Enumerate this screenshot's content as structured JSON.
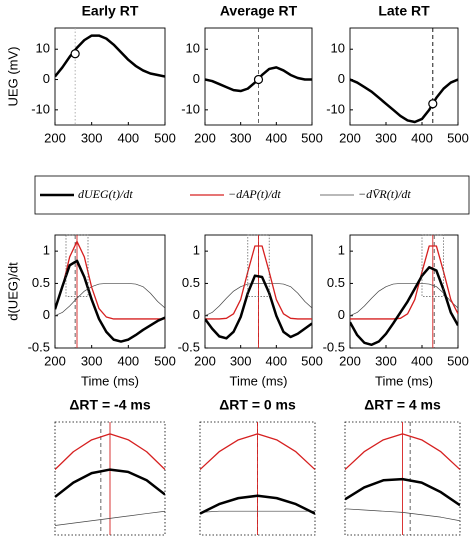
{
  "chart_data": [
    {
      "type": "line",
      "title": "Early RT",
      "ylabel": "UEG (mV)",
      "x": [
        200,
        220,
        240,
        260,
        280,
        300,
        320,
        340,
        360,
        380,
        400,
        420,
        440,
        460,
        480,
        500
      ],
      "series": [
        {
          "color": "#000000",
          "width": 2.5,
          "values": [
            1,
            4,
            7.5,
            10.5,
            13,
            14.5,
            14.5,
            13.5,
            11.5,
            9,
            6.5,
            4.5,
            3,
            2,
            1.5,
            1
          ]
        }
      ],
      "xlim": [
        200,
        500
      ],
      "xticks": [
        200,
        300,
        400,
        500
      ],
      "ylim": [
        -15,
        17
      ],
      "yticks": [
        -10,
        0,
        10
      ],
      "vlines": [
        {
          "x": 255,
          "color": "#aaaaaa",
          "style": "dotted"
        }
      ],
      "marker": {
        "x": 255,
        "y": 8.5
      }
    },
    {
      "type": "line",
      "title": "Average RT",
      "x": [
        200,
        220,
        240,
        260,
        280,
        300,
        320,
        340,
        360,
        380,
        400,
        420,
        440,
        460,
        480,
        500
      ],
      "series": [
        {
          "color": "#000000",
          "width": 2.5,
          "values": [
            0,
            -0.5,
            -1.5,
            -2.5,
            -3.5,
            -3.8,
            -3,
            -1,
            1.5,
            3.5,
            4,
            3,
            1.5,
            0.5,
            0,
            0
          ]
        }
      ],
      "xlim": [
        200,
        500
      ],
      "xticks": [
        200,
        300,
        400,
        500
      ],
      "ylim": [
        -15,
        17
      ],
      "yticks": [
        -10,
        0,
        10
      ],
      "vlines": [
        {
          "x": 350,
          "color": "#555555",
          "style": "dashed"
        }
      ],
      "marker": {
        "x": 350,
        "y": 0
      }
    },
    {
      "type": "line",
      "title": "Late RT",
      "x": [
        200,
        220,
        240,
        260,
        280,
        300,
        320,
        340,
        360,
        380,
        400,
        420,
        440,
        460,
        480,
        500
      ],
      "series": [
        {
          "color": "#000000",
          "width": 2.5,
          "values": [
            0,
            -1,
            -2.5,
            -4,
            -6,
            -8,
            -10,
            -12,
            -13.5,
            -14,
            -13,
            -10,
            -6,
            -3,
            -1,
            0
          ]
        }
      ],
      "xlim": [
        200,
        500
      ],
      "xticks": [
        200,
        300,
        400,
        500
      ],
      "ylim": [
        -15,
        17
      ],
      "yticks": [
        -10,
        0,
        10
      ],
      "vlines": [
        {
          "x": 430,
          "color": "#000000",
          "style": "dashed"
        }
      ],
      "marker": {
        "x": 430,
        "y": -8
      }
    },
    {
      "type": "line",
      "ylabel": "d(UEG)/dt",
      "xlabel": "Time (ms)",
      "x": [
        200,
        220,
        240,
        260,
        280,
        300,
        320,
        340,
        360,
        380,
        400,
        420,
        440,
        460,
        480,
        500
      ],
      "series": [
        {
          "name": "dUEG(t)/dt",
          "color": "#000000",
          "width": 2.5,
          "values": [
            0.1,
            0.45,
            0.78,
            0.85,
            0.6,
            0.25,
            -0.05,
            -0.25,
            -0.37,
            -0.4,
            -0.37,
            -0.3,
            -0.22,
            -0.15,
            -0.08,
            -0.03
          ]
        },
        {
          "name": "−dAP(t)/dt",
          "color": "#d62020",
          "width": 1.3,
          "values": [
            0.11,
            0.44,
            0.91,
            1.15,
            0.91,
            0.44,
            0.11,
            -0.02,
            -0.05,
            -0.05,
            -0.05,
            -0.05,
            -0.05,
            -0.05,
            -0.05,
            -0.05
          ]
        },
        {
          "name": "−dV̄R(t)/dt",
          "color": "#444444",
          "width": 0.7,
          "values": [
            0,
            0.05,
            0.15,
            0.27,
            0.38,
            0.45,
            0.49,
            0.5,
            0.5,
            0.5,
            0.5,
            0.49,
            0.45,
            0.35,
            0.22,
            0.12
          ]
        }
      ],
      "xlim": [
        200,
        500
      ],
      "xticks": [
        200,
        300,
        400,
        500
      ],
      "ylim": [
        -0.5,
        1.25
      ],
      "yticks": [
        -0.5,
        0,
        0.5,
        1
      ],
      "vlines": [
        {
          "x": 255,
          "color": "#555555",
          "style": "dashed"
        },
        {
          "x": 260,
          "color": "#d62020",
          "style": "solid"
        }
      ]
    },
    {
      "type": "line",
      "xlabel": "Time (ms)",
      "x": [
        200,
        220,
        240,
        260,
        280,
        300,
        320,
        340,
        360,
        380,
        400,
        420,
        440,
        460,
        480,
        500
      ],
      "series": [
        {
          "color": "#000000",
          "width": 2.5,
          "values": [
            -0.05,
            -0.2,
            -0.32,
            -0.35,
            -0.25,
            -0.02,
            0.35,
            0.62,
            0.6,
            0.35,
            0,
            -0.25,
            -0.33,
            -0.28,
            -0.2,
            -0.12
          ]
        },
        {
          "color": "#d62020",
          "width": 1.3,
          "values": [
            -0.05,
            -0.05,
            -0.05,
            -0.04,
            0.03,
            0.25,
            0.68,
            1.08,
            1.08,
            0.68,
            0.25,
            0.03,
            -0.04,
            -0.05,
            -0.05,
            -0.05
          ]
        },
        {
          "color": "#444444",
          "width": 0.7,
          "values": [
            0,
            0.05,
            0.15,
            0.27,
            0.38,
            0.45,
            0.49,
            0.5,
            0.5,
            0.5,
            0.5,
            0.49,
            0.45,
            0.35,
            0.22,
            0.12
          ]
        }
      ],
      "xlim": [
        200,
        500
      ],
      "xticks": [
        200,
        300,
        400,
        500
      ],
      "ylim": [
        -0.5,
        1.25
      ],
      "yticks": [
        -0.5,
        0,
        0.5,
        1
      ],
      "vlines": [
        {
          "x": 350,
          "color": "#555555",
          "style": "dashed"
        },
        {
          "x": 350,
          "color": "#d62020",
          "style": "solid"
        }
      ]
    },
    {
      "type": "line",
      "xlabel": "Time (ms)",
      "x": [
        200,
        220,
        240,
        260,
        280,
        300,
        320,
        340,
        360,
        380,
        400,
        420,
        440,
        460,
        480,
        500
      ],
      "series": [
        {
          "color": "#000000",
          "width": 2.5,
          "values": [
            -0.1,
            -0.3,
            -0.42,
            -0.45,
            -0.4,
            -0.28,
            -0.12,
            0.05,
            0.22,
            0.42,
            0.62,
            0.75,
            0.7,
            0.4,
            0.05,
            -0.15
          ]
        },
        {
          "color": "#d62020",
          "width": 1.3,
          "values": [
            -0.05,
            -0.05,
            -0.05,
            -0.05,
            -0.05,
            -0.05,
            -0.05,
            -0.04,
            0.03,
            0.25,
            0.68,
            1.08,
            1.08,
            0.68,
            0.25,
            0.03
          ]
        },
        {
          "color": "#444444",
          "width": 0.7,
          "values": [
            0,
            0.05,
            0.15,
            0.27,
            0.38,
            0.45,
            0.49,
            0.5,
            0.5,
            0.5,
            0.5,
            0.49,
            0.45,
            0.35,
            0.22,
            0.12
          ]
        }
      ],
      "xlim": [
        200,
        500
      ],
      "xticks": [
        200,
        300,
        400,
        500
      ],
      "ylim": [
        -0.5,
        1.25
      ],
      "yticks": [
        -0.5,
        0,
        0.5,
        1
      ],
      "vlines": [
        {
          "x": 434,
          "color": "#555555",
          "style": "dashed"
        },
        {
          "x": 430,
          "color": "#d62020",
          "style": "solid"
        }
      ]
    },
    {
      "type": "line",
      "title": "ΔRT = -4 ms",
      "frame": "dotted",
      "x": [
        230,
        240,
        250,
        260,
        270,
        280,
        290
      ],
      "series": [
        {
          "color": "#000000",
          "width": 2.5,
          "values": [
            0.62,
            0.74,
            0.82,
            0.85,
            0.83,
            0.76,
            0.64
          ]
        },
        {
          "color": "#d62020",
          "width": 1.3,
          "values": [
            0.85,
            1.0,
            1.1,
            1.15,
            1.1,
            1.0,
            0.85
          ]
        },
        {
          "color": "#444444",
          "width": 0.7,
          "values": [
            0.38,
            0.4,
            0.42,
            0.44,
            0.46,
            0.48,
            0.5
          ]
        }
      ],
      "xlim": [
        230,
        290
      ],
      "ylim": [
        0.3,
        1.25
      ],
      "vlines": [
        {
          "x": 255,
          "color": "#555555",
          "style": "dashed"
        },
        {
          "x": 260,
          "color": "#d62020",
          "style": "solid"
        }
      ]
    },
    {
      "type": "line",
      "title": "ΔRT = 0 ms",
      "frame": "dotted",
      "x": [
        320,
        330,
        340,
        350,
        360,
        370,
        380
      ],
      "series": [
        {
          "color": "#000000",
          "width": 2.5,
          "values": [
            0.48,
            0.56,
            0.61,
            0.63,
            0.61,
            0.56,
            0.48
          ]
        },
        {
          "color": "#d62020",
          "width": 1.3,
          "values": [
            0.85,
            1.0,
            1.1,
            1.15,
            1.1,
            1.0,
            0.85
          ]
        },
        {
          "color": "#444444",
          "width": 0.7,
          "values": [
            0.49,
            0.5,
            0.5,
            0.5,
            0.5,
            0.5,
            0.5
          ]
        }
      ],
      "xlim": [
        320,
        380
      ],
      "ylim": [
        0.3,
        1.25
      ],
      "vlines": [
        {
          "x": 350,
          "color": "#555555",
          "style": "dashed"
        },
        {
          "x": 350,
          "color": "#d62020",
          "style": "solid"
        }
      ]
    },
    {
      "type": "line",
      "title": "ΔRT = 4 ms",
      "frame": "dotted",
      "x": [
        400,
        410,
        420,
        430,
        440,
        450,
        460
      ],
      "series": [
        {
          "color": "#000000",
          "width": 2.5,
          "values": [
            0.6,
            0.7,
            0.76,
            0.77,
            0.74,
            0.66,
            0.55
          ]
        },
        {
          "color": "#d62020",
          "width": 1.3,
          "values": [
            0.85,
            1.0,
            1.1,
            1.15,
            1.1,
            1.0,
            0.85
          ]
        },
        {
          "color": "#444444",
          "width": 0.7,
          "values": [
            0.52,
            0.51,
            0.5,
            0.49,
            0.47,
            0.45,
            0.42
          ]
        }
      ],
      "xlim": [
        400,
        460
      ],
      "ylim": [
        0.3,
        1.25
      ],
      "vlines": [
        {
          "x": 434,
          "color": "#555555",
          "style": "dashed"
        },
        {
          "x": 430,
          "color": "#d62020",
          "style": "solid"
        }
      ]
    }
  ]
}
